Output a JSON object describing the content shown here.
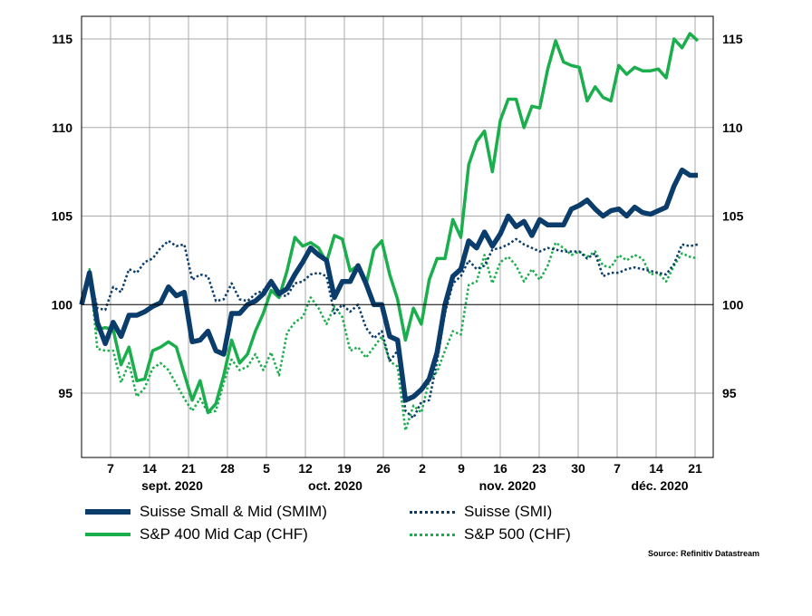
{
  "chart_data": {
    "type": "line",
    "title": "",
    "xlabel": "",
    "ylabel": "",
    "ylim": [
      92,
      116
    ],
    "y_ticks": [
      95,
      100,
      105,
      110,
      115
    ],
    "x_ticks": [
      "7",
      "14",
      "21",
      "28",
      "5",
      "12",
      "19",
      "26",
      "2",
      "9",
      "16",
      "23",
      "30",
      "7",
      "14",
      "21"
    ],
    "month_labels": [
      "sept. 2020",
      "oct. 2020",
      "nov. 2020",
      "déc. 2020"
    ],
    "grid": "on",
    "legend_placement": "bottom",
    "source": "Source: Refinitiv Datastream",
    "series": [
      {
        "name": "Suisse Small & Mid (SMIM)",
        "color": "#0a3d6b",
        "style": "solid-thick",
        "values": [
          100,
          101.8,
          99,
          97.8,
          99,
          98.2,
          99.4,
          99.4,
          99.6,
          99.9,
          100.1,
          101,
          100.5,
          100.7,
          97.9,
          98,
          98.5,
          97.4,
          97.2,
          99.5,
          99.5,
          100,
          100.2,
          100.6,
          101.3,
          100.6,
          100.9,
          101.7,
          102.4,
          103.2,
          102.8,
          102.5,
          100.4,
          101.3,
          101.3,
          102.2,
          101.2,
          100,
          100,
          98.2,
          98,
          94.6,
          94.8,
          95.2,
          95.8,
          97.3,
          100,
          101.6,
          102,
          103.6,
          103.2,
          104.1,
          103.3,
          104,
          105,
          104.4,
          104.7,
          103.9,
          104.8,
          104.5,
          104.5,
          104.5,
          105.4,
          105.6,
          105.9,
          105.4,
          105,
          105.3,
          105.4,
          105,
          105.5,
          105.2,
          105.1,
          105.3,
          105.5,
          106.7,
          107.6,
          107.3,
          107.3
        ]
      },
      {
        "name": "S&P 400 Mid Cap (CHF)",
        "color": "#1aae4c",
        "style": "solid",
        "values": [
          100,
          101.8,
          98.6,
          98.7,
          98.6,
          96.6,
          97.6,
          95.7,
          95.8,
          97.4,
          97.6,
          97.9,
          97.6,
          96.1,
          94.6,
          95.7,
          93.9,
          94.4,
          96,
          98,
          96.7,
          97.2,
          98.5,
          99.5,
          100.8,
          100.4,
          101.9,
          103.8,
          103.3,
          103.5,
          103.2,
          102.4,
          103.9,
          103.7,
          101.9,
          102.2,
          101.1,
          103.1,
          103.6,
          101.7,
          100.3,
          98,
          99.8,
          98.9,
          101.4,
          102.6,
          102.6,
          104.8,
          103.8,
          107.9,
          109.2,
          109.8,
          107.5,
          110.4,
          111.6,
          111.6,
          110,
          111.2,
          111.1,
          113.3,
          114.9,
          113.7,
          113.5,
          113.4,
          111.5,
          112.3,
          111.7,
          111.5,
          113.5,
          113,
          113.4,
          113.2,
          113.2,
          113.3,
          112.8,
          115,
          114.5,
          115.3,
          114.9
        ]
      },
      {
        "name": "Suisse (SMI)",
        "color": "#0a3d6b",
        "style": "dotted",
        "values": [
          100,
          101.8,
          99.8,
          99.7,
          101,
          100.7,
          102,
          101.8,
          102.4,
          102.6,
          103.2,
          103.6,
          103.3,
          103.4,
          101.4,
          101.7,
          101.6,
          100.2,
          100.3,
          101.2,
          100.3,
          100.2,
          100.6,
          100.8,
          101.4,
          100.5,
          100.5,
          101.2,
          101.3,
          101.7,
          101.8,
          101.6,
          99.5,
          100,
          99.6,
          100,
          98.7,
          98.1,
          98.5,
          96.8,
          97.4,
          94,
          93.6,
          94.5,
          94.6,
          96.8,
          99.5,
          101.2,
          101.6,
          102.5,
          102,
          102.2,
          103.1,
          103.2,
          103.4,
          103.7,
          103.4,
          103.2,
          103,
          103.2,
          103.1,
          103,
          103,
          103,
          102.6,
          102.9,
          101.6,
          101.8,
          101.8,
          102,
          102.1,
          102,
          101.9,
          101.8,
          101.7,
          102.3,
          103.4,
          103.3,
          103.4
        ]
      },
      {
        "name": "S&P 500 (CHF)",
        "color": "#1aae4c",
        "style": "dotted",
        "values": [
          100,
          102,
          97.5,
          97.4,
          97.4,
          95.6,
          96.7,
          94.8,
          95.3,
          96.4,
          96.7,
          96.3,
          95.5,
          94.7,
          94,
          94.7,
          93.9,
          94,
          95.6,
          96.9,
          96.3,
          96.5,
          97.2,
          96.3,
          97.3,
          96,
          98.4,
          99,
          99.3,
          100.4,
          99.8,
          98.9,
          99.9,
          99.3,
          97.4,
          97.6,
          97,
          97.6,
          98.2,
          96.8,
          96.5,
          92.9,
          94.3,
          93.9,
          95.7,
          96.2,
          97.4,
          98.5,
          98.3,
          101.1,
          101.3,
          102.8,
          101.2,
          102.4,
          102.7,
          102.2,
          101.3,
          102,
          101.4,
          102.2,
          103.5,
          103.2,
          102.8,
          103,
          102.7,
          103,
          102.2,
          102.1,
          102.8,
          102.5,
          102.8,
          102.6,
          101.7,
          101.8,
          101.3,
          102.2,
          102.9,
          102.7,
          102.6
        ]
      }
    ]
  }
}
